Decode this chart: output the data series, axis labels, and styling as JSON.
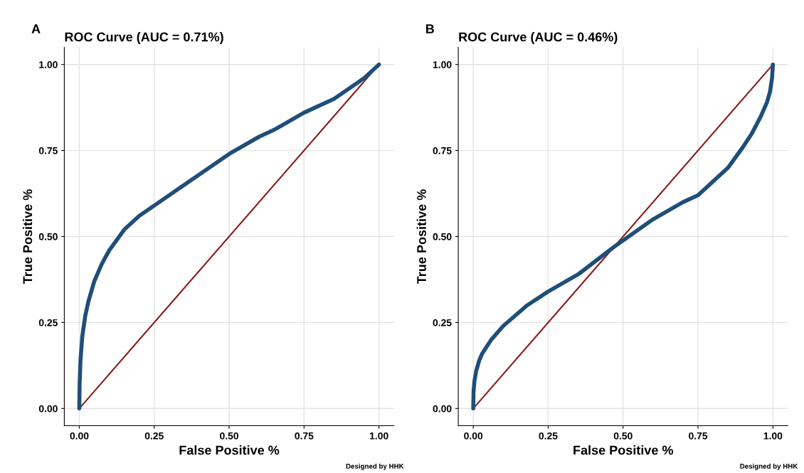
{
  "chart_data": [
    {
      "type": "line",
      "title": "ROC Curve (AUC = 0.71%)",
      "xlabel": "False Positive %",
      "ylabel": "True Positive %",
      "annotations": [
        "A",
        "Designed by HHK"
      ],
      "xlim": [
        -0.05,
        1.05
      ],
      "ylim": [
        -0.05,
        1.05
      ],
      "xticks": [
        {
          "value": 0,
          "label": "0.00"
        },
        {
          "value": 0.25,
          "label": "0.25"
        },
        {
          "value": 0.5,
          "label": "0.50"
        },
        {
          "value": 0.75,
          "label": "0.75"
        },
        {
          "value": 1,
          "label": "1.00"
        }
      ],
      "yticks": [
        {
          "value": 0,
          "label": "0.00"
        },
        {
          "value": 0.25,
          "label": "0.25"
        },
        {
          "value": 0.5,
          "label": "0.50"
        },
        {
          "value": 0.75,
          "label": "0.75"
        },
        {
          "value": 1,
          "label": "1.00"
        }
      ],
      "grid": true,
      "series": [
        {
          "color": "#8b1a1a",
          "x": [
            0,
            1
          ],
          "values": [
            0,
            1
          ]
        },
        {
          "color": "#1f4e79",
          "x": [
            0,
            0.001,
            0.004,
            0.01,
            0.02,
            0.03,
            0.05,
            0.075,
            0.1,
            0.15,
            0.2,
            0.25,
            0.3,
            0.35,
            0.4,
            0.5,
            0.6,
            0.65,
            0.75,
            0.85,
            0.9,
            0.95,
            1
          ],
          "values": [
            0,
            0.07,
            0.14,
            0.21,
            0.27,
            0.31,
            0.37,
            0.42,
            0.46,
            0.52,
            0.56,
            0.59,
            0.62,
            0.65,
            0.68,
            0.74,
            0.79,
            0.81,
            0.86,
            0.9,
            0.93,
            0.96,
            1
          ]
        }
      ]
    },
    {
      "type": "line",
      "title": "ROC Curve (AUC = 0.46%)",
      "xlabel": "False Positive %",
      "ylabel": "True Positive %",
      "annotations": [
        "B",
        "Designed by HHK"
      ],
      "xlim": [
        -0.05,
        1.05
      ],
      "ylim": [
        -0.05,
        1.05
      ],
      "xticks": [
        {
          "value": 0,
          "label": "0.00"
        },
        {
          "value": 0.25,
          "label": "0.25"
        },
        {
          "value": 0.5,
          "label": "0.50"
        },
        {
          "value": 0.75,
          "label": "0.75"
        },
        {
          "value": 1,
          "label": "1.00"
        }
      ],
      "yticks": [
        {
          "value": 0,
          "label": "0.00"
        },
        {
          "value": 0.25,
          "label": "0.25"
        },
        {
          "value": 0.5,
          "label": "0.50"
        },
        {
          "value": 0.75,
          "label": "0.75"
        },
        {
          "value": 1,
          "label": "1.00"
        }
      ],
      "grid": true,
      "series": [
        {
          "color": "#8b1a1a",
          "x": [
            0,
            1
          ],
          "values": [
            0,
            1
          ]
        },
        {
          "color": "#1f4e79",
          "x": [
            0,
            0.001,
            0.004,
            0.01,
            0.02,
            0.03,
            0.06,
            0.1,
            0.14,
            0.18,
            0.25,
            0.35,
            0.47,
            0.6,
            0.7,
            0.75,
            0.8,
            0.85,
            0.9,
            0.93,
            0.96,
            0.98,
            0.99,
            0.997,
            1
          ],
          "values": [
            0,
            0.05,
            0.08,
            0.11,
            0.14,
            0.16,
            0.2,
            0.24,
            0.27,
            0.3,
            0.34,
            0.39,
            0.47,
            0.55,
            0.6,
            0.62,
            0.66,
            0.7,
            0.76,
            0.8,
            0.85,
            0.89,
            0.92,
            0.96,
            1
          ]
        }
      ]
    }
  ]
}
